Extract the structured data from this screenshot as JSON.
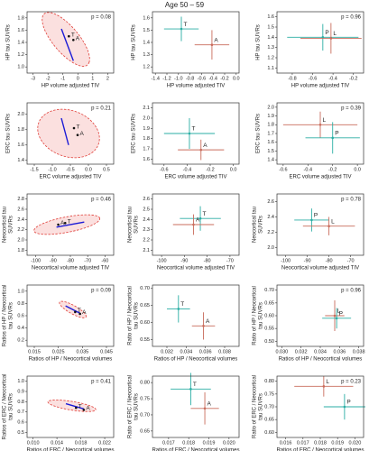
{
  "chart_data": [
    {
      "type": "ellipse",
      "x_label": "HP volume adjusted TIV",
      "y_label": [
        "HP tau SUVRs"
      ],
      "xlim": [
        -3.4,
        2.4
      ],
      "xticks": [
        -3,
        -2,
        -1,
        0,
        1,
        2
      ],
      "ylim": [
        0.9,
        1.9
      ],
      "yticks": [
        {
          "value": 1,
          "label": "1.0"
        },
        1.2,
        1.4,
        1.6,
        1.8
      ],
      "annotation": "p = 0.08",
      "ellipse": {
        "center": [
          -0.8,
          1.45
        ],
        "axis1": [
          1.55,
          -0.38
        ],
        "axis2": [
          0.35,
          0.22
        ],
        "fill": "#fbe0df",
        "edge": "#e0403a"
      },
      "line": {
        "x": [
          -1.1,
          -0.3
        ],
        "y": [
          1.62,
          1.1
        ],
        "color": "#1a1ad6"
      },
      "points": [
        {
          "name": "T",
          "x": -0.6,
          "y": 1.5,
          "color": "#111111"
        },
        {
          "name": "A",
          "x": -0.3,
          "y": 1.44,
          "color": "#111111"
        }
      ]
    },
    {
      "type": "errorbar",
      "title": "Age 50 – 59",
      "x_label": "HP volume adjusted TIV",
      "y_label": [
        "HP tau SUVRs"
      ],
      "xlim": [
        -1.45,
        0.05
      ],
      "xticks": [
        -1.4,
        -1.2,
        {
          "value": -1,
          "label": "-1.0"
        },
        -0.8,
        -0.6,
        -0.4,
        -0.2,
        {
          "value": 0,
          "label": "0.0"
        }
      ],
      "ylim": [
        1.15,
        1.65
      ],
      "yticks": [
        1.2,
        1.3,
        1.4,
        1.5,
        1.6
      ],
      "points": [
        {
          "name": "T",
          "x": -0.95,
          "y": 1.51,
          "xerr": 0.3,
          "yerr": 0.1,
          "color": "#2aaea4"
        },
        {
          "name": "A",
          "x": -0.42,
          "y": 1.38,
          "xerr": 0.3,
          "yerr": 0.12,
          "color": "#c96c5c"
        }
      ]
    },
    {
      "type": "errorbar",
      "x_label": "HP volume adjusted TIV",
      "y_label": [
        "HP tau SUVRs"
      ],
      "xlim": [
        -0.95,
        -0.1
      ],
      "xticks": [
        -0.8,
        -0.6,
        -0.4,
        -0.2
      ],
      "ylim": [
        1.05,
        1.65
      ],
      "yticks": [
        1.1,
        1.2,
        1.3,
        1.4,
        1.5,
        1.6
      ],
      "annotation": "p = 0.96",
      "points": [
        {
          "name": "P",
          "x": -0.5,
          "y": 1.4,
          "xerr": 0.35,
          "yerr": 0.13,
          "color": "#2aaea4"
        },
        {
          "name": "L",
          "x": -0.42,
          "y": 1.39,
          "xerr": 0.3,
          "yerr": 0.15,
          "color": "#c96c5c"
        }
      ]
    },
    {
      "type": "ellipse",
      "x_label": "ERC volume adjusted TIV",
      "y_label": [
        "ERC tau SUVRs"
      ],
      "xlim": [
        -1.7,
        0.7
      ],
      "xticks": [
        -1.5,
        {
          "value": -1,
          "label": "-1.0"
        },
        -0.5,
        {
          "value": 0,
          "label": "0.0"
        },
        0.5
      ],
      "ylim": [
        1.35,
        2.15
      ],
      "yticks": [
        1.4,
        1.6,
        1.8,
        {
          "value": 2,
          "label": "2.0"
        }
      ],
      "annotation": "p = 0.21",
      "ellipse": {
        "center": [
          -0.55,
          1.75
        ],
        "axis1": [
          0.85,
          -0.1
        ],
        "axis2": [
          0.1,
          0.3
        ],
        "fill": "#fbe0df",
        "edge": "#e0403a"
      },
      "line": {
        "x": [
          -0.75,
          -0.55
        ],
        "y": [
          1.95,
          1.6
        ],
        "color": "#1a1ad6"
      },
      "points": [
        {
          "name": "T",
          "x": -0.4,
          "y": 1.82,
          "color": "#111111"
        },
        {
          "name": "A",
          "x": -0.3,
          "y": 1.73,
          "color": "#111111"
        }
      ]
    },
    {
      "type": "errorbar",
      "x_label": "ERC volume adjusted TIV",
      "y_label": [
        "ERC tau SUVRs"
      ],
      "xlim": [
        -0.7,
        0.05
      ],
      "xticks": [
        -0.6,
        -0.4,
        -0.2,
        {
          "value": 0,
          "label": "0.0"
        }
      ],
      "ylim": [
        1.55,
        2.15
      ],
      "yticks": [
        1.6,
        1.7,
        1.8,
        1.9,
        {
          "value": 2,
          "label": "2.0"
        },
        2.1
      ],
      "points": [
        {
          "name": "T",
          "x": -0.38,
          "y": 1.85,
          "xerr": 0.22,
          "yerr": 0.15,
          "color": "#2aaea4"
        },
        {
          "name": "A",
          "x": -0.28,
          "y": 1.69,
          "xerr": 0.2,
          "yerr": 0.1,
          "color": "#c96c5c"
        }
      ]
    },
    {
      "type": "errorbar",
      "x_label": "ERC volume adjusted TIV",
      "y_label": [
        "ERC tau SUVRs"
      ],
      "xlim": [
        -0.65,
        0.05
      ],
      "xticks": [
        -0.6,
        -0.4,
        -0.2,
        {
          "value": 0,
          "label": "0.0"
        }
      ],
      "ylim": [
        1.35,
        2.05
      ],
      "yticks": [
        1.4,
        1.5,
        1.6,
        1.7,
        1.8,
        1.9,
        {
          "value": 2,
          "label": "2.0"
        }
      ],
      "annotation": "p = 0.39",
      "points": [
        {
          "name": "L",
          "x": -0.3,
          "y": 1.8,
          "xerr": 0.3,
          "yerr": 0.15,
          "color": "#c96c5c"
        },
        {
          "name": "P",
          "x": -0.2,
          "y": 1.65,
          "xerr": 0.22,
          "yerr": 0.18,
          "color": "#2aaea4"
        }
      ]
    },
    {
      "type": "ellipse",
      "x_label": "Neocortical volume adjusted TIV",
      "y_label": [
        "Neocortical tau",
        "SUVRs"
      ],
      "xlim": [
        -105,
        -55
      ],
      "xticks": [
        -100,
        -90,
        -80,
        -70,
        -60
      ],
      "ylim": [
        1.7,
        2.9
      ],
      "yticks": [
        1.8,
        {
          "value": 2,
          "label": "2.0"
        },
        2.2,
        2.4,
        2.6,
        2.8
      ],
      "annotation": "p = 0.46",
      "ellipse": {
        "center": [
          -82,
          2.3
        ],
        "axis1": [
          19,
          0.12
        ],
        "axis2": [
          -0.5,
          0.15
        ],
        "fill": "#fbe0df",
        "edge": "#e0403a"
      },
      "line": {
        "x": [
          -88,
          -72
        ],
        "y": [
          2.25,
          2.35
        ],
        "color": "#1a1ad6"
      },
      "points": [
        {
          "name": "A",
          "x": -87,
          "y": 2.3,
          "color": "#111111"
        },
        {
          "name": "T",
          "x": -83,
          "y": 2.33,
          "color": "#111111"
        }
      ]
    },
    {
      "type": "errorbar",
      "x_label": "Neocortical volume adjusted TIV",
      "y_label": [
        "Neocortical tau",
        "SUVRs"
      ],
      "xlim": [
        -104,
        -66
      ],
      "xticks": [
        -100,
        -90,
        -80,
        -70
      ],
      "ylim": [
        2.05,
        2.65
      ],
      "yticks": [
        2.1,
        2.2,
        2.3,
        2.4,
        2.5,
        2.6
      ],
      "points": [
        {
          "name": "T",
          "x": -83,
          "y": 2.41,
          "xerr": 9,
          "yerr": 0.12,
          "color": "#2aaea4"
        },
        {
          "name": "A",
          "x": -86,
          "y": 2.35,
          "xerr": 9,
          "yerr": 0.1,
          "color": "#c96c5c"
        }
      ]
    },
    {
      "type": "errorbar",
      "x_label": "Neocortical volume adjusted TIV",
      "y_label": [
        "Neocortical tau",
        "SUVRs"
      ],
      "xlim": [
        -104,
        -64
      ],
      "xticks": [
        -100,
        -90,
        -80,
        -70
      ],
      "ylim": [
        1.9,
        2.7
      ],
      "yticks": [
        {
          "value": 2,
          "label": "2.0"
        },
        2.2,
        2.4,
        2.6
      ],
      "annotation": "p = 0.78",
      "points": [
        {
          "name": "P",
          "x": -88,
          "y": 2.36,
          "xerr": 8,
          "yerr": 0.15,
          "color": "#2aaea4"
        },
        {
          "name": "L",
          "x": -80,
          "y": 2.28,
          "xerr": 12,
          "yerr": 0.12,
          "color": "#c96c5c"
        }
      ]
    },
    {
      "type": "ellipse",
      "x_label": "Ratios of HP / Neocortical volumes",
      "y_label": [
        "Ratios of HP / Neocortical",
        "tau SUVRs"
      ],
      "xlim": [
        0.012,
        0.048
      ],
      "xticks": [
        0.015,
        0.025,
        0.035,
        0.045
      ],
      "ylim": [
        0.1,
        1.1
      ],
      "yticks": [
        0.2,
        0.4,
        0.6,
        0.8,
        {
          "value": 1,
          "label": "1.0"
        }
      ],
      "annotation": "p = 0.09",
      "ellipse": {
        "center": [
          0.031,
          0.7
        ],
        "axis1": [
          0.0055,
          -0.12
        ],
        "axis2": [
          0.0008,
          0.06
        ],
        "fill": "#fbe0df",
        "edge": "#e0403a"
      },
      "line": {
        "x": [
          0.028,
          0.034
        ],
        "y": [
          0.76,
          0.64
        ],
        "color": "#1a1ad6"
      },
      "points": [
        {
          "name": "T",
          "x": 0.032,
          "y": 0.66,
          "color": "#111111"
        },
        {
          "name": "A",
          "x": 0.034,
          "y": 0.63,
          "color": "#111111"
        }
      ]
    },
    {
      "type": "errorbar",
      "x_label": "Ratios of HP / Neocortical volumes",
      "y_label": [
        "Ratio of HP / Neocortical",
        "tau SUVRs"
      ],
      "xlim": [
        0.0305,
        0.0395
      ],
      "xticks": [
        0.032,
        0.034,
        0.036,
        0.038
      ],
      "ylim": [
        0.53,
        0.71
      ],
      "yticks": [
        0.55,
        {
          "value": 0.6,
          "label": "0.60"
        },
        0.65,
        {
          "value": 0.7,
          "label": "0.70"
        }
      ],
      "points": [
        {
          "name": "T",
          "x": 0.0332,
          "y": 0.64,
          "xerr": 0.0012,
          "yerr": 0.04,
          "color": "#2aaea4"
        },
        {
          "name": "A",
          "x": 0.0358,
          "y": 0.59,
          "xerr": 0.0012,
          "yerr": 0.04,
          "color": "#c96c5c"
        }
      ]
    },
    {
      "type": "errorbar",
      "x_label": "Ratios of HP / Neocortical volumes",
      "y_label": [
        "Ratio of HP / Neocortical",
        "tau SUVRs"
      ],
      "xlim": [
        0.0295,
        0.0385
      ],
      "xticks": [
        {
          "value": 0.03,
          "label": "0.030"
        },
        0.032,
        0.034,
        0.036,
        0.038
      ],
      "ylim": [
        0.48,
        0.72
      ],
      "yticks": [
        {
          "value": 0.5,
          "label": "0.50"
        },
        0.55,
        {
          "value": 0.6,
          "label": "0.60"
        },
        0.65,
        {
          "value": 0.7,
          "label": "0.70"
        }
      ],
      "annotation": "p = 0.96",
      "points": [
        {
          "name": "L",
          "x": 0.0355,
          "y": 0.6,
          "xerr": 0.001,
          "yerr": 0.06,
          "color": "#c96c5c"
        },
        {
          "name": "P",
          "x": 0.0357,
          "y": 0.59,
          "xerr": 0.0015,
          "yerr": 0.04,
          "color": "#2aaea4"
        }
      ]
    },
    {
      "type": "ellipse",
      "x_label": "Ratios of ERC / Neocortical volumes",
      "y_label": [
        "Ratios of ERC / Neocortical",
        "tau SUVRs"
      ],
      "xlim": [
        0.009,
        0.0235
      ],
      "xticks": [
        {
          "value": 0.01,
          "label": "0.010"
        },
        0.014,
        0.018,
        0.022
      ],
      "ylim": [
        0.45,
        1.05
      ],
      "yticks": [
        0.5,
        0.6,
        0.7,
        0.8,
        0.9,
        {
          "value": 1,
          "label": "1.0"
        }
      ],
      "annotation": "p = 0.41",
      "ellipse": {
        "center": [
          0.0165,
          0.76
        ],
        "axis1": [
          0.004,
          -0.04
        ],
        "axis2": [
          0.0003,
          0.04
        ],
        "fill": "#fbe0df",
        "edge": "#e0403a"
      },
      "line": {
        "x": [
          0.0155,
          0.0185
        ],
        "y": [
          0.78,
          0.73
        ],
        "color": "#1a1ad6"
      },
      "points": [
        {
          "name": "T",
          "x": 0.0172,
          "y": 0.74,
          "color": "#111111"
        },
        {
          "name": "A",
          "x": 0.0185,
          "y": 0.72,
          "color": "#111111"
        }
      ]
    },
    {
      "type": "errorbar",
      "x_label": "Ratios of ERC / Neocortical volumes",
      "y_label": [
        "Ratio of ERC / Neocortical",
        "tau SUVRs"
      ],
      "xlim": [
        0.0162,
        0.0205
      ],
      "xticks": [
        0.017,
        0.018,
        0.019,
        {
          "value": 0.02,
          "label": "0.020"
        }
      ],
      "ylim": [
        0.63,
        0.82
      ],
      "yticks": [
        0.65,
        {
          "value": 0.7,
          "label": "0.70"
        },
        0.75,
        {
          "value": 0.8,
          "label": "0.80"
        }
      ],
      "points": [
        {
          "name": "T",
          "x": 0.0181,
          "y": 0.78,
          "xerr": 0.001,
          "yerr": 0.05,
          "color": "#2aaea4"
        },
        {
          "name": "A",
          "x": 0.0188,
          "y": 0.72,
          "xerr": 0.0007,
          "yerr": 0.05,
          "color": "#c96c5c"
        }
      ]
    },
    {
      "type": "errorbar",
      "x_label": "Ratios of ERC / Neocortical volumes",
      "y_label": [
        "Ratio of ERC / Neocortical",
        "tau SUVRs"
      ],
      "xlim": [
        0.0155,
        0.0205
      ],
      "xticks": [
        0.016,
        0.017,
        0.018,
        0.019,
        {
          "value": 0.02,
          "label": "0.020"
        }
      ],
      "ylim": [
        0.58,
        0.82
      ],
      "yticks": [
        {
          "value": 0.6,
          "label": "0.60"
        },
        0.65,
        {
          "value": 0.7,
          "label": "0.70"
        },
        0.75,
        {
          "value": 0.8,
          "label": "0.80"
        }
      ],
      "annotation": "p = 0.23",
      "points": [
        {
          "name": "L",
          "x": 0.0182,
          "y": 0.78,
          "xerr": 0.0017,
          "yerr": 0.04,
          "color": "#c96c5c"
        },
        {
          "name": "P",
          "x": 0.0194,
          "y": 0.7,
          "xerr": 0.0012,
          "yerr": 0.05,
          "color": "#2aaea4"
        }
      ]
    }
  ]
}
